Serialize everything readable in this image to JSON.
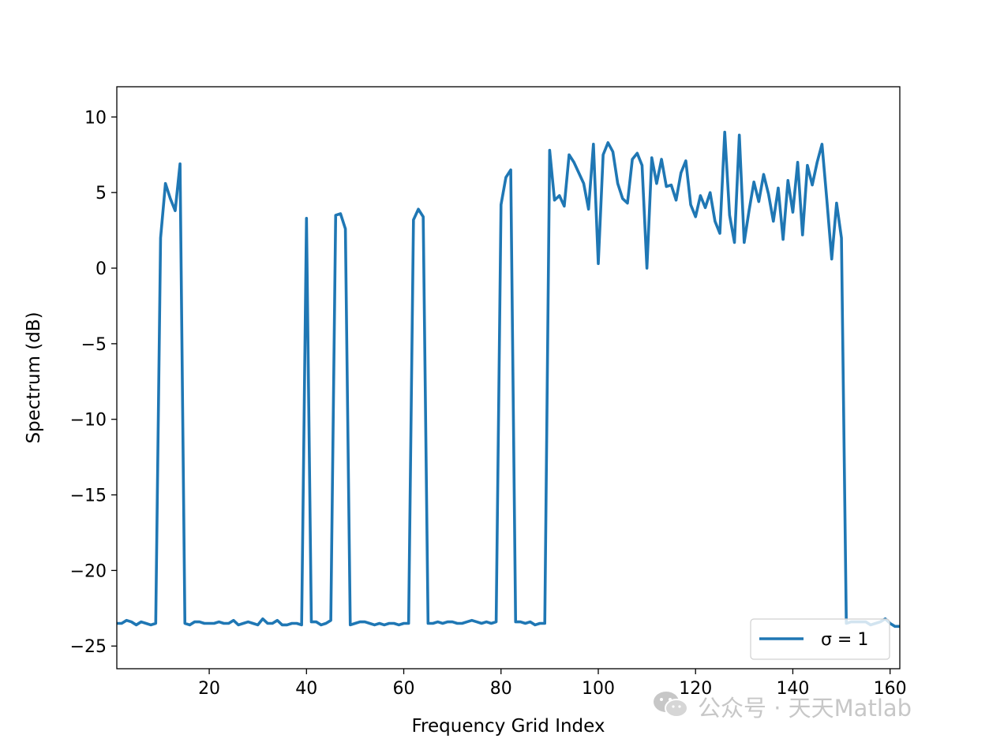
{
  "chart_data": {
    "type": "line",
    "title": "",
    "xlabel": "Frequency Grid Index",
    "ylabel": "Spectrum (dB)",
    "xlim": [
      1,
      162
    ],
    "ylim": [
      -26.5,
      12
    ],
    "xticks": [
      20,
      40,
      60,
      80,
      100,
      120,
      140,
      160
    ],
    "yticks": [
      -25,
      -20,
      -15,
      -10,
      -5,
      0,
      5,
      10
    ],
    "grid": false,
    "legend_position": "lower-right",
    "series": [
      {
        "name": "σ = 1",
        "color": "#1f77b4",
        "x": [
          1,
          2,
          3,
          4,
          5,
          6,
          7,
          8,
          9,
          10,
          11,
          12,
          13,
          14,
          15,
          16,
          17,
          18,
          19,
          20,
          21,
          22,
          23,
          24,
          25,
          26,
          27,
          28,
          29,
          30,
          31,
          32,
          33,
          34,
          35,
          36,
          37,
          38,
          39,
          40,
          41,
          42,
          43,
          44,
          45,
          46,
          47,
          48,
          49,
          50,
          51,
          52,
          53,
          54,
          55,
          56,
          57,
          58,
          59,
          60,
          61,
          62,
          63,
          64,
          65,
          66,
          67,
          68,
          69,
          70,
          71,
          72,
          73,
          74,
          75,
          76,
          77,
          78,
          79,
          80,
          81,
          82,
          83,
          84,
          85,
          86,
          87,
          88,
          89,
          90,
          91,
          92,
          93,
          94,
          95,
          96,
          97,
          98,
          99,
          100,
          101,
          102,
          103,
          104,
          105,
          106,
          107,
          108,
          109,
          110,
          111,
          112,
          113,
          114,
          115,
          116,
          117,
          118,
          119,
          120,
          121,
          122,
          123,
          124,
          125,
          126,
          127,
          128,
          129,
          130,
          131,
          132,
          133,
          134,
          135,
          136,
          137,
          138,
          139,
          140,
          141,
          142,
          143,
          144,
          145,
          146,
          147,
          148,
          149,
          150,
          151,
          152,
          153,
          154,
          155,
          156,
          157,
          158,
          159,
          160,
          161,
          162
        ],
        "y": [
          -23.5,
          -23.5,
          -23.3,
          -23.4,
          -23.6,
          -23.4,
          -23.5,
          -23.6,
          -23.5,
          2.0,
          5.6,
          4.6,
          3.8,
          6.9,
          -23.5,
          -23.6,
          -23.4,
          -23.4,
          -23.5,
          -23.5,
          -23.5,
          -23.4,
          -23.5,
          -23.5,
          -23.3,
          -23.6,
          -23.5,
          -23.4,
          -23.5,
          -23.6,
          -23.2,
          -23.5,
          -23.5,
          -23.3,
          -23.6,
          -23.6,
          -23.5,
          -23.5,
          -23.6,
          3.3,
          -23.4,
          -23.4,
          -23.6,
          -23.5,
          -23.3,
          3.5,
          3.6,
          2.6,
          -23.6,
          -23.5,
          -23.4,
          -23.4,
          -23.5,
          -23.6,
          -23.5,
          -23.6,
          -23.5,
          -23.5,
          -23.6,
          -23.5,
          -23.5,
          3.2,
          3.9,
          3.4,
          -23.5,
          -23.5,
          -23.4,
          -23.5,
          -23.4,
          -23.4,
          -23.5,
          -23.5,
          -23.4,
          -23.3,
          -23.4,
          -23.5,
          -23.4,
          -23.5,
          -23.4,
          4.2,
          6.0,
          6.5,
          -23.4,
          -23.4,
          -23.5,
          -23.4,
          -23.6,
          -23.5,
          -23.5,
          7.8,
          4.5,
          4.8,
          4.1,
          7.5,
          7.0,
          6.3,
          5.6,
          3.9,
          8.2,
          0.3,
          7.5,
          8.3,
          7.7,
          5.6,
          4.6,
          4.3,
          7.2,
          7.6,
          6.8,
          0.0,
          7.3,
          5.6,
          7.2,
          5.4,
          5.5,
          4.5,
          6.3,
          7.1,
          4.2,
          3.4,
          4.8,
          4.0,
          5.0,
          3.1,
          2.3,
          9.0,
          3.5,
          1.7,
          8.8,
          1.7,
          3.8,
          5.7,
          4.4,
          6.2,
          4.9,
          3.1,
          5.3,
          1.9,
          5.8,
          3.7,
          7.0,
          2.2,
          6.8,
          5.5,
          7.0,
          8.2,
          4.5,
          0.6,
          4.3,
          2.0,
          -23.5,
          -23.4,
          -23.4,
          -23.4,
          -23.4,
          -23.6,
          -23.5,
          -23.4,
          -23.2,
          -23.5,
          -23.7,
          -23.7
        ]
      }
    ]
  },
  "watermark": {
    "icon": "wechat-icon",
    "text": "公众号 · 天天Matlab"
  }
}
